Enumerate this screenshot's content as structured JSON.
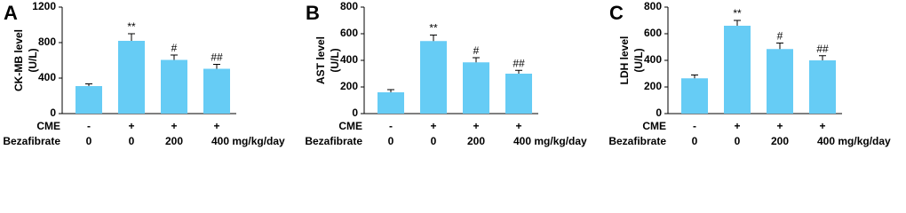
{
  "chart_data": [
    {
      "type": "bar",
      "panel_label": "A",
      "ylabel": [
        "CK-MB level",
        "(U/L)"
      ],
      "color": "#66ccf5",
      "values": [
        310,
        820,
        605,
        505
      ],
      "errors": [
        25,
        80,
        55,
        50
      ],
      "annotations": [
        null,
        "**",
        "#",
        "##"
      ],
      "ylim": [
        0,
        1200
      ],
      "yticks": [
        0,
        400,
        800,
        1200
      ],
      "rows": [
        {
          "name": "CME",
          "values": [
            "-",
            "+",
            "+",
            "+"
          ]
        },
        {
          "name": "Bezafibrate",
          "values": [
            "0",
            "0",
            "200",
            "400 mg/kg/day"
          ]
        }
      ]
    },
    {
      "type": "bar",
      "panel_label": "B",
      "ylabel": [
        "AST level",
        "(U/L)"
      ],
      "color": "#66ccf5",
      "values": [
        160,
        545,
        385,
        300
      ],
      "errors": [
        20,
        45,
        35,
        25
      ],
      "annotations": [
        null,
        "**",
        "#",
        "##"
      ],
      "ylim": [
        0,
        800
      ],
      "yticks": [
        0,
        200,
        400,
        600,
        800
      ],
      "rows": [
        {
          "name": "CME",
          "values": [
            "-",
            "+",
            "+",
            "+"
          ]
        },
        {
          "name": "Bezafibrate",
          "values": [
            "0",
            "0",
            "200",
            "400 mg/kg/day"
          ]
        }
      ]
    },
    {
      "type": "bar",
      "panel_label": "C",
      "ylabel": [
        "LDH level",
        "(U/L)"
      ],
      "color": "#66ccf5",
      "values": [
        265,
        660,
        485,
        400
      ],
      "errors": [
        25,
        40,
        45,
        35
      ],
      "annotations": [
        null,
        "**",
        "#",
        "##"
      ],
      "ylim": [
        0,
        800
      ],
      "yticks": [
        0,
        200,
        400,
        600,
        800
      ],
      "rows": [
        {
          "name": "CME",
          "values": [
            "-",
            "+",
            "+",
            "+"
          ]
        },
        {
          "name": "Bezafibrate",
          "values": [
            "0",
            "0",
            "200",
            "400 mg/kg/day"
          ]
        }
      ]
    }
  ]
}
